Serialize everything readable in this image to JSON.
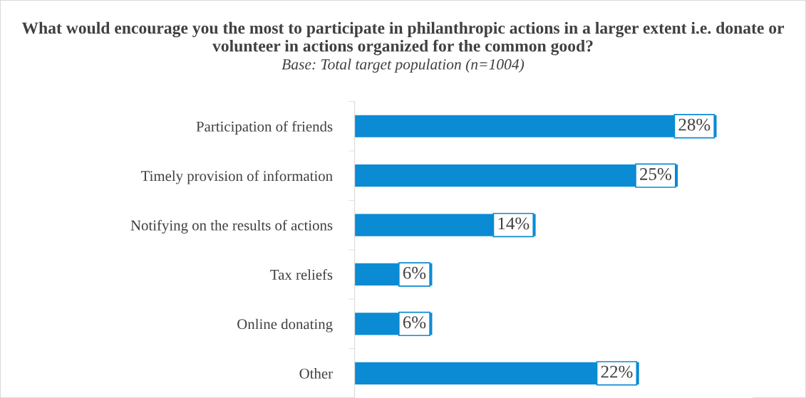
{
  "chart_data": {
    "type": "bar",
    "orientation": "horizontal",
    "title": "What would encourage you the most to participate in philanthropic actions in a larger extent i.e. donate or volunteer in actions organized for the common good?",
    "subtitle": "Base: Total target population (n=1004)",
    "categories": [
      "Participation of friends",
      "Timely provision of information",
      "Notifying on the results of actions",
      "Tax reliefs",
      "Online donating",
      "Other"
    ],
    "values": [
      28,
      25,
      14,
      6,
      6,
      22
    ],
    "value_labels": [
      "28%",
      "25%",
      "14%",
      "6%",
      "6%",
      "22%"
    ],
    "color": "#0b8bd3",
    "grid": false,
    "legend": false,
    "tick_labels": "y"
  }
}
